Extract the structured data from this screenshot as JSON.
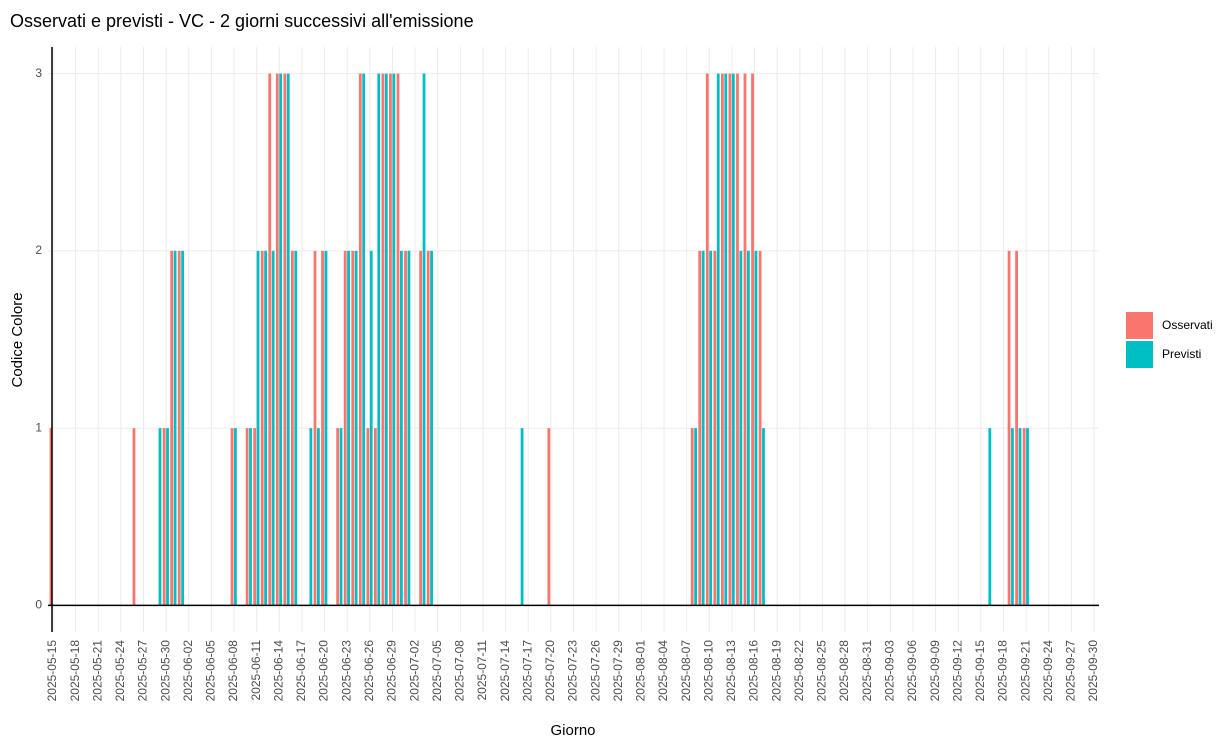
{
  "chart_data": {
    "type": "bar",
    "title": "Osservati e previsti - VC - 2 giorni successivi all'emissione",
    "xlabel": "Giorno",
    "ylabel": "Codice Colore",
    "x": [
      "2025-05-15",
      "2025-05-16",
      "2025-05-17",
      "2025-05-18",
      "2025-05-19",
      "2025-05-20",
      "2025-05-21",
      "2025-05-22",
      "2025-05-23",
      "2025-05-24",
      "2025-05-25",
      "2025-05-26",
      "2025-05-27",
      "2025-05-28",
      "2025-05-29",
      "2025-05-30",
      "2025-05-31",
      "2025-06-01",
      "2025-06-02",
      "2025-06-03",
      "2025-06-04",
      "2025-06-05",
      "2025-06-06",
      "2025-06-07",
      "2025-06-08",
      "2025-06-09",
      "2025-06-10",
      "2025-06-11",
      "2025-06-12",
      "2025-06-13",
      "2025-06-14",
      "2025-06-15",
      "2025-06-16",
      "2025-06-17",
      "2025-06-18",
      "2025-06-19",
      "2025-06-20",
      "2025-06-21",
      "2025-06-22",
      "2025-06-23",
      "2025-06-24",
      "2025-06-25",
      "2025-06-26",
      "2025-06-27",
      "2025-06-28",
      "2025-06-29",
      "2025-06-30",
      "2025-07-01",
      "2025-07-02",
      "2025-07-03",
      "2025-07-04",
      "2025-07-05",
      "2025-07-06",
      "2025-07-07",
      "2025-07-08",
      "2025-07-09",
      "2025-07-10",
      "2025-07-11",
      "2025-07-12",
      "2025-07-13",
      "2025-07-14",
      "2025-07-15",
      "2025-07-16",
      "2025-07-17",
      "2025-07-18",
      "2025-07-19",
      "2025-07-20",
      "2025-07-21",
      "2025-07-22",
      "2025-07-23",
      "2025-07-24",
      "2025-07-25",
      "2025-07-26",
      "2025-07-27",
      "2025-07-28",
      "2025-07-29",
      "2025-07-30",
      "2025-07-31",
      "2025-08-01",
      "2025-08-02",
      "2025-08-03",
      "2025-08-04",
      "2025-08-05",
      "2025-08-06",
      "2025-08-07",
      "2025-08-08",
      "2025-08-09",
      "2025-08-10",
      "2025-08-11",
      "2025-08-12",
      "2025-08-13",
      "2025-08-14",
      "2025-08-15",
      "2025-08-16",
      "2025-08-17",
      "2025-08-18",
      "2025-08-19",
      "2025-08-20",
      "2025-08-21",
      "2025-08-22",
      "2025-08-23",
      "2025-08-24",
      "2025-08-25",
      "2025-08-26",
      "2025-08-27",
      "2025-08-28",
      "2025-08-29",
      "2025-08-30",
      "2025-08-31",
      "2025-09-01",
      "2025-09-02",
      "2025-09-03",
      "2025-09-04",
      "2025-09-05",
      "2025-09-06",
      "2025-09-07",
      "2025-09-08",
      "2025-09-09",
      "2025-09-10",
      "2025-09-11",
      "2025-09-12",
      "2025-09-13",
      "2025-09-14",
      "2025-09-15",
      "2025-09-16",
      "2025-09-17",
      "2025-09-18",
      "2025-09-19",
      "2025-09-20",
      "2025-09-21",
      "2025-09-22",
      "2025-09-23",
      "2025-09-24",
      "2025-09-25",
      "2025-09-26",
      "2025-09-27",
      "2025-09-28",
      "2025-09-29",
      "2025-09-30"
    ],
    "series": [
      {
        "name": "Osservati",
        "color": "#F8766D",
        "values": [
          1,
          0,
          0,
          0,
          0,
          0,
          0,
          0,
          0,
          0,
          0,
          1,
          0,
          0,
          0,
          1,
          2,
          2,
          0,
          0,
          0,
          0,
          0,
          0,
          1,
          0,
          1,
          1,
          2,
          3,
          3,
          3,
          2,
          0,
          0,
          2,
          2,
          0,
          1,
          2,
          2,
          3,
          1,
          1,
          3,
          3,
          3,
          2,
          0,
          2,
          2,
          0,
          0,
          0,
          0,
          0,
          0,
          0,
          0,
          0,
          0,
          0,
          0,
          0,
          0,
          0,
          1,
          0,
          0,
          0,
          0,
          0,
          0,
          0,
          0,
          0,
          0,
          0,
          0,
          0,
          0,
          0,
          0,
          0,
          0,
          1,
          2,
          3,
          2,
          3,
          3,
          3,
          3,
          3,
          2,
          0,
          0,
          0,
          0,
          0,
          0,
          0,
          0,
          0,
          0,
          0,
          0,
          0,
          0,
          0,
          0,
          0,
          0,
          0,
          0,
          0,
          0,
          0,
          0,
          0,
          0,
          0,
          0,
          0,
          0,
          0,
          0,
          2,
          2,
          1,
          0,
          0,
          0,
          0,
          0,
          0,
          0,
          0,
          0
        ]
      },
      {
        "name": "Previsti",
        "color": "#00BFC4",
        "values": [
          0,
          0,
          0,
          0,
          0,
          0,
          0,
          0,
          0,
          0,
          0,
          0,
          0,
          0,
          1,
          1,
          2,
          2,
          0,
          0,
          0,
          0,
          0,
          0,
          1,
          0,
          1,
          2,
          2,
          2,
          3,
          3,
          2,
          0,
          1,
          1,
          2,
          0,
          1,
          2,
          2,
          3,
          2,
          3,
          3,
          3,
          2,
          2,
          0,
          3,
          2,
          0,
          0,
          0,
          0,
          0,
          0,
          0,
          0,
          0,
          0,
          0,
          1,
          0,
          0,
          0,
          0,
          0,
          0,
          0,
          0,
          0,
          0,
          0,
          0,
          0,
          0,
          0,
          0,
          0,
          0,
          0,
          0,
          0,
          0,
          1,
          2,
          2,
          3,
          3,
          3,
          2,
          2,
          2,
          1,
          0,
          0,
          0,
          0,
          0,
          0,
          0,
          0,
          0,
          0,
          0,
          0,
          0,
          0,
          0,
          0,
          0,
          0,
          0,
          0,
          0,
          0,
          0,
          0,
          0,
          0,
          0,
          0,
          0,
          1,
          0,
          0,
          1,
          1,
          1,
          0,
          0,
          0,
          0,
          0,
          0,
          0,
          0,
          0
        ]
      }
    ],
    "xticks": [
      "2025-05-15",
      "2025-05-18",
      "2025-05-21",
      "2025-05-24",
      "2025-05-27",
      "2025-05-30",
      "2025-06-02",
      "2025-06-05",
      "2025-06-08",
      "2025-06-11",
      "2025-06-14",
      "2025-06-17",
      "2025-06-20",
      "2025-06-23",
      "2025-06-26",
      "2025-06-29",
      "2025-07-02",
      "2025-07-05",
      "2025-07-08",
      "2025-07-11",
      "2025-07-14",
      "2025-07-17",
      "2025-07-20",
      "2025-07-23",
      "2025-07-26",
      "2025-07-29",
      "2025-08-01",
      "2025-08-04",
      "2025-08-07",
      "2025-08-10",
      "2025-08-13",
      "2025-08-16",
      "2025-08-19",
      "2025-08-22",
      "2025-08-25",
      "2025-08-28",
      "2025-08-31",
      "2025-09-03",
      "2025-09-06",
      "2025-09-09",
      "2025-09-12",
      "2025-09-15",
      "2025-09-18",
      "2025-09-21",
      "2025-09-24",
      "2025-09-27",
      "2025-09-30"
    ],
    "ylim": [
      -0.15,
      3.15
    ],
    "yticks": [
      0,
      1,
      2,
      3
    ],
    "grid": true,
    "legend": "right"
  }
}
